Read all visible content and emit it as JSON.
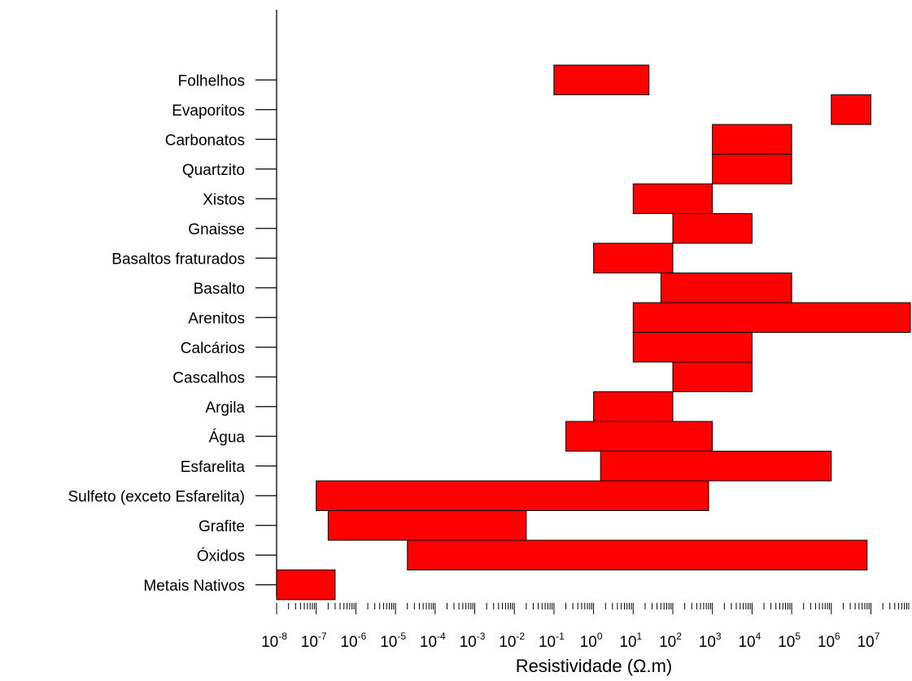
{
  "chart_data": {
    "type": "bar",
    "orientation": "horizontal-range",
    "xscale": "log",
    "xlim": [
      1e-08,
      10000000.0
    ],
    "categories": [
      "Folhelhos",
      "Evaporitos",
      "Carbonatos",
      "Quartzito",
      "Xistos",
      "Gnaisse",
      "Basaltos fraturados",
      "Basalto",
      "Arenitos",
      "Calcários",
      "Cascalhos",
      "Argila",
      "Água",
      "Esfarelita",
      "Sulfeto (exceto Esfarelita)",
      "Grafite",
      "Óxidos",
      "Metais Nativos"
    ],
    "ranges": [
      [
        0.1,
        25
      ],
      [
        1000000,
        10000000
      ],
      [
        1000,
        100000
      ],
      [
        1000,
        100000
      ],
      [
        10,
        1000
      ],
      [
        100,
        10000
      ],
      [
        1,
        100
      ],
      [
        50,
        100000
      ],
      [
        10,
        800000000
      ],
      [
        10,
        10000
      ],
      [
        100,
        10000
      ],
      [
        1,
        100
      ],
      [
        0.2,
        1000
      ],
      [
        1.5,
        1000000
      ],
      [
        1e-07,
        800
      ],
      [
        2e-07,
        0.02
      ],
      [
        2e-05,
        8000000
      ],
      [
        1e-08,
        3e-07
      ]
    ],
    "tick_base": "10",
    "tick_exponents": [
      "-8",
      "-7",
      "-6",
      "-5",
      "-4",
      "-3",
      "-2",
      "-1",
      "0",
      "1",
      "2",
      "3",
      "4",
      "5",
      "6",
      "7"
    ],
    "xlabel": "Resistividade (Ω.m)",
    "bar_color": "#ff0000",
    "bar_edge_color": "#000000"
  }
}
